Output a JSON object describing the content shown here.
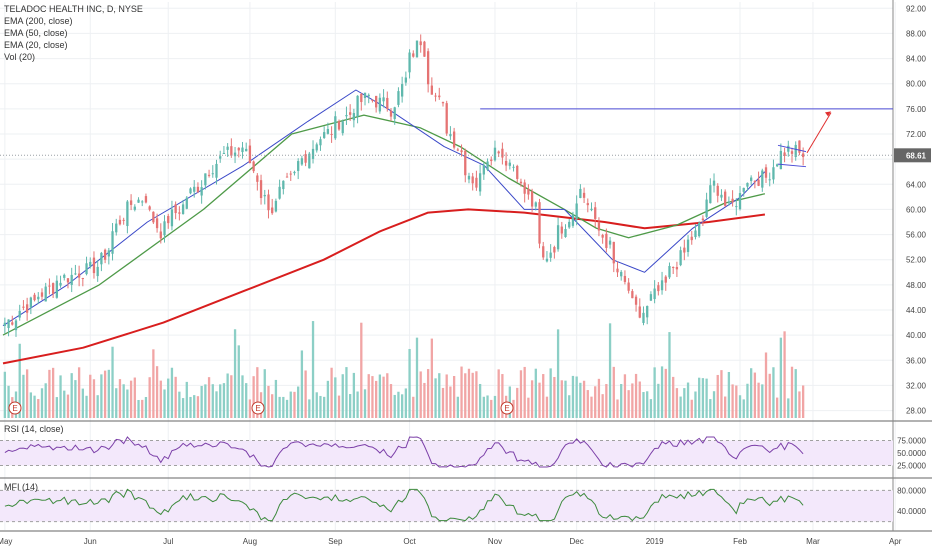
{
  "legend": {
    "title": "TELADOC HEALTH INC, D, NYSE",
    "lines": [
      "EMA (200, close)",
      "EMA (50, close)",
      "EMA (20, close)",
      "Vol (20)"
    ]
  },
  "panels": {
    "rsi_label": "RSI (14, close)",
    "mfi_label": "MFI (14)"
  },
  "colors": {
    "up": "#5fb8ad",
    "down": "#e57373",
    "vol_up": "#8ccfc6",
    "vol_down": "#f1a5a5",
    "ema200": "#d81e1e",
    "ema50": "#4e9a48",
    "ema20": "#3a48c8",
    "level_line": "#4b4bd6",
    "arrow": "#e03030",
    "price_tag": "#666666",
    "rsi_fill": "#f3e8fb",
    "osc_line": "#7b3fa8",
    "mfi_line": "#3d8a3d"
  },
  "chart_data": {
    "type": "candlestick",
    "symbol": "TELADOC HEALTH INC",
    "interval": "D",
    "exchange": "NYSE",
    "last_price": "68.61",
    "y_ticks": [
      "92.00",
      "88.00",
      "84.00",
      "80.00",
      "76.00",
      "72.00",
      "68.00",
      "64.00",
      "60.00",
      "56.00",
      "52.00",
      "48.00",
      "44.00",
      "40.00",
      "36.00",
      "32.00",
      "28.00"
    ],
    "x_ticks": [
      "May",
      "Jun",
      "Jul",
      "Aug",
      "Sep",
      "Oct",
      "Nov",
      "Dec",
      "2019",
      "Feb",
      "Mar",
      "Apr"
    ],
    "price_range": [
      26.5,
      93
    ],
    "horizontal_level": 76.0,
    "earnings_markers": [
      "E",
      "E",
      "E"
    ],
    "pivots": [
      {
        "date": "2018-05-01",
        "close": 42
      },
      {
        "date": "2018-05-10",
        "close": 45
      },
      {
        "date": "2018-05-22",
        "close": 49
      },
      {
        "date": "2018-06-05",
        "close": 51
      },
      {
        "date": "2018-06-15",
        "close": 60
      },
      {
        "date": "2018-06-22",
        "close": 62
      },
      {
        "date": "2018-06-28",
        "close": 56.5
      },
      {
        "date": "2018-07-05",
        "close": 60
      },
      {
        "date": "2018-07-20",
        "close": 68
      },
      {
        "date": "2018-07-30",
        "close": 70
      },
      {
        "date": "2018-08-03",
        "close": 65
      },
      {
        "date": "2018-08-09",
        "close": 60
      },
      {
        "date": "2018-08-15",
        "close": 64
      },
      {
        "date": "2018-08-24",
        "close": 70
      },
      {
        "date": "2018-09-04",
        "close": 74
      },
      {
        "date": "2018-09-14",
        "close": 78
      },
      {
        "date": "2018-09-24",
        "close": 76
      },
      {
        "date": "2018-10-01",
        "close": 84
      },
      {
        "date": "2018-10-04",
        "close": 87
      },
      {
        "date": "2018-10-10",
        "close": 78
      },
      {
        "date": "2018-10-18",
        "close": 70
      },
      {
        "date": "2018-10-25",
        "close": 64
      },
      {
        "date": "2018-10-29",
        "close": 68
      },
      {
        "date": "2018-11-02",
        "close": 70
      },
      {
        "date": "2018-11-08",
        "close": 67
      },
      {
        "date": "2018-11-16",
        "close": 60
      },
      {
        "date": "2018-11-20",
        "close": 52
      },
      {
        "date": "2018-11-28",
        "close": 58
      },
      {
        "date": "2018-12-04",
        "close": 63
      },
      {
        "date": "2018-12-07",
        "close": 60
      },
      {
        "date": "2018-12-14",
        "close": 54
      },
      {
        "date": "2018-12-20",
        "close": 48
      },
      {
        "date": "2018-12-26",
        "close": 43
      },
      {
        "date": "2019-01-04",
        "close": 48
      },
      {
        "date": "2019-01-11",
        "close": 53
      },
      {
        "date": "2019-01-16",
        "close": 56
      },
      {
        "date": "2019-01-23",
        "close": 64
      },
      {
        "date": "2019-01-29",
        "close": 60
      },
      {
        "date": "2019-02-05",
        "close": 65
      },
      {
        "date": "2019-02-12",
        "close": 65
      },
      {
        "date": "2019-02-15",
        "close": 68
      },
      {
        "date": "2019-02-20",
        "close": 69.5
      },
      {
        "date": "2019-02-26",
        "close": 68.6
      }
    ],
    "ema200": [
      [
        0,
        35.5
      ],
      [
        0.1,
        38
      ],
      [
        0.2,
        42
      ],
      [
        0.3,
        47
      ],
      [
        0.4,
        52
      ],
      [
        0.47,
        56.5
      ],
      [
        0.53,
        59.5
      ],
      [
        0.58,
        60
      ],
      [
        0.65,
        59.5
      ],
      [
        0.75,
        58
      ],
      [
        0.8,
        57
      ],
      [
        0.88,
        58
      ],
      [
        0.95,
        59.2
      ]
    ],
    "ema50": [
      [
        0,
        40
      ],
      [
        0.12,
        48
      ],
      [
        0.25,
        60
      ],
      [
        0.36,
        72
      ],
      [
        0.45,
        75
      ],
      [
        0.52,
        73
      ],
      [
        0.57,
        70
      ],
      [
        0.63,
        65
      ],
      [
        0.7,
        60
      ],
      [
        0.74,
        57
      ],
      [
        0.78,
        55.5
      ],
      [
        0.84,
        57.5
      ],
      [
        0.9,
        61
      ],
      [
        0.95,
        62.5
      ]
    ],
    "ema20": [
      [
        0,
        41.5
      ],
      [
        0.08,
        48
      ],
      [
        0.18,
        58
      ],
      [
        0.3,
        67
      ],
      [
        0.38,
        74
      ],
      [
        0.44,
        79
      ],
      [
        0.48,
        76
      ],
      [
        0.55,
        70
      ],
      [
        0.6,
        67
      ],
      [
        0.65,
        60
      ],
      [
        0.7,
        60
      ],
      [
        0.76,
        52
      ],
      [
        0.8,
        50
      ],
      [
        0.86,
        57
      ],
      [
        0.92,
        62
      ],
      [
        0.95,
        66
      ]
    ],
    "rsi_ticks": [
      "75.0000",
      "50.0000",
      "25.0000"
    ],
    "mfi_ticks": [
      "80.0000",
      "40.0000"
    ]
  }
}
